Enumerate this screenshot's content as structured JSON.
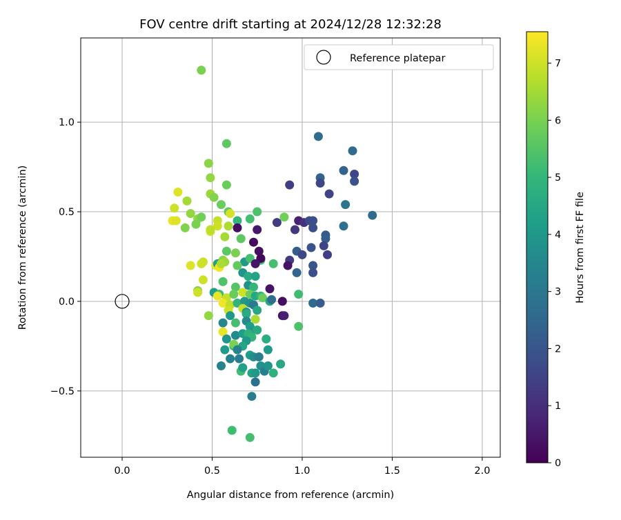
{
  "chart_data": {
    "type": "scatter",
    "title": "FOV centre drift starting at 2024/12/28 12:32:28",
    "xlabel": "Angular distance from reference (arcmin)",
    "ylabel": "Rotation from reference (arcmin)",
    "xlim": [
      -0.23,
      2.1
    ],
    "ylim": [
      -0.87,
      1.47
    ],
    "xticks": [
      0.0,
      0.5,
      1.0,
      1.5,
      2.0
    ],
    "xtick_labels": [
      "0.0",
      "0.5",
      "1.0",
      "1.5",
      "2.0"
    ],
    "yticks": [
      -0.5,
      0.0,
      0.5,
      1.0
    ],
    "ytick_labels": [
      "−0.5",
      "0.0",
      "0.5",
      "1.0"
    ],
    "grid": true,
    "legend": {
      "position": "top-right",
      "entries": [
        "Reference platepar"
      ]
    },
    "reference_point": {
      "x": 0.0,
      "y": 0.0
    },
    "colorbar": {
      "label": "Hours from first FF file",
      "colormap": "viridis",
      "range": [
        0,
        7.55
      ],
      "ticks": [
        0,
        1,
        2,
        3,
        4,
        5,
        6,
        7
      ],
      "tick_labels": [
        "0",
        "1",
        "2",
        "3",
        "4",
        "5",
        "6",
        "7"
      ]
    },
    "points": [
      [
        0.44,
        1.29,
        6.0
      ],
      [
        0.58,
        0.88,
        5.6
      ],
      [
        0.48,
        0.77,
        6.2
      ],
      [
        0.49,
        0.69,
        6.3
      ],
      [
        0.58,
        0.65,
        5.8
      ],
      [
        0.31,
        0.61,
        7.2
      ],
      [
        0.49,
        0.6,
        6.4
      ],
      [
        0.36,
        0.56,
        6.5
      ],
      [
        0.51,
        0.58,
        6.1
      ],
      [
        0.29,
        0.52,
        7.0
      ],
      [
        0.55,
        0.54,
        5.8
      ],
      [
        0.38,
        0.49,
        6.3
      ],
      [
        0.59,
        0.5,
        5.7
      ],
      [
        0.6,
        0.49,
        7.1
      ],
      [
        0.75,
        0.5,
        5.4
      ],
      [
        0.28,
        0.45,
        7.3
      ],
      [
        0.3,
        0.45,
        7.2
      ],
      [
        0.42,
        0.46,
        6.3
      ],
      [
        0.44,
        0.47,
        5.9
      ],
      [
        0.53,
        0.45,
        6.9
      ],
      [
        0.53,
        0.42,
        7.0
      ],
      [
        0.59,
        0.42,
        6.6
      ],
      [
        0.64,
        0.45,
        5.0
      ],
      [
        0.71,
        0.46,
        5.3
      ],
      [
        0.9,
        0.47,
        5.9
      ],
      [
        0.41,
        0.43,
        6.0
      ],
      [
        0.35,
        0.41,
        6.1
      ],
      [
        0.49,
        0.39,
        7.0
      ],
      [
        0.49,
        0.4,
        6.8
      ],
      [
        0.64,
        0.41,
        0.3
      ],
      [
        0.75,
        0.4,
        0.5
      ],
      [
        0.86,
        0.44,
        1.3
      ],
      [
        0.98,
        0.45,
        0.7
      ],
      [
        1.01,
        0.44,
        1.1
      ],
      [
        1.04,
        0.45,
        1.7
      ],
      [
        1.06,
        0.45,
        1.8
      ],
      [
        0.96,
        0.4,
        1.2
      ],
      [
        1.06,
        0.41,
        1.8
      ],
      [
        1.13,
        0.37,
        2.1
      ],
      [
        1.13,
        0.35,
        2.2
      ],
      [
        0.57,
        0.36,
        6.5
      ],
      [
        0.66,
        0.35,
        5.6
      ],
      [
        0.73,
        0.33,
        0.2
      ],
      [
        1.05,
        0.3,
        1.9
      ],
      [
        1.12,
        0.31,
        1.5
      ],
      [
        0.58,
        0.28,
        5.6
      ],
      [
        0.63,
        0.27,
        6.0
      ],
      [
        0.76,
        0.28,
        0.3
      ],
      [
        0.97,
        0.28,
        2.2
      ],
      [
        1.0,
        0.26,
        1.6
      ],
      [
        1.14,
        0.26,
        1.4
      ],
      [
        0.56,
        0.23,
        6.2
      ],
      [
        0.57,
        0.22,
        6.4
      ],
      [
        0.68,
        0.22,
        4.0
      ],
      [
        0.71,
        0.24,
        5.3
      ],
      [
        0.77,
        0.23,
        5.1
      ],
      [
        0.77,
        0.24,
        0.1
      ],
      [
        0.93,
        0.23,
        1.3
      ],
      [
        0.38,
        0.2,
        7.2
      ],
      [
        0.44,
        0.21,
        7.0
      ],
      [
        0.45,
        0.22,
        7.0
      ],
      [
        0.52,
        0.2,
        7.3
      ],
      [
        0.53,
        0.21,
        4.3
      ],
      [
        0.54,
        0.19,
        7.4
      ],
      [
        0.55,
        0.21,
        6.6
      ],
      [
        0.64,
        0.2,
        5.7
      ],
      [
        0.74,
        0.21,
        0.4
      ],
      [
        0.84,
        0.21,
        5.3
      ],
      [
        0.92,
        0.2,
        0.4
      ],
      [
        1.06,
        0.2,
        2.0
      ],
      [
        0.67,
        0.16,
        3.9
      ],
      [
        0.7,
        0.14,
        4.6
      ],
      [
        0.74,
        0.14,
        4.4
      ],
      [
        0.97,
        0.16,
        2.5
      ],
      [
        1.06,
        0.16,
        1.8
      ],
      [
        0.45,
        0.12,
        7.0
      ],
      [
        0.56,
        0.11,
        5.4
      ],
      [
        0.7,
        0.09,
        3.8
      ],
      [
        0.63,
        0.08,
        5.5
      ],
      [
        0.73,
        0.08,
        5.0
      ],
      [
        0.82,
        0.07,
        0.4
      ],
      [
        0.42,
        0.06,
        6.2
      ],
      [
        0.42,
        0.05,
        7.0
      ],
      [
        0.51,
        0.05,
        4.2
      ],
      [
        0.54,
        0.04,
        5.2
      ],
      [
        0.53,
        0.03,
        7.3
      ],
      [
        0.58,
        0.02,
        6.9
      ],
      [
        0.62,
        0.04,
        5.8
      ],
      [
        0.67,
        0.05,
        7.0
      ],
      [
        0.71,
        0.04,
        5.8
      ],
      [
        0.74,
        0.03,
        4.5
      ],
      [
        0.77,
        0.03,
        5.0
      ],
      [
        0.78,
        0.02,
        5.8
      ],
      [
        0.82,
        0.0,
        4.5
      ],
      [
        0.83,
        0.01,
        2.7
      ],
      [
        0.89,
        0.0,
        0.3
      ],
      [
        0.98,
        0.04,
        5.2
      ],
      [
        1.06,
        -0.01,
        2.6
      ],
      [
        1.1,
        -0.01,
        2.2
      ],
      [
        0.56,
        -0.01,
        7.4
      ],
      [
        0.6,
        -0.02,
        6.8
      ],
      [
        0.64,
        -0.01,
        4.9
      ],
      [
        0.68,
        0.0,
        4.0
      ],
      [
        0.71,
        -0.01,
        3.8
      ],
      [
        0.73,
        -0.02,
        3.1
      ],
      [
        0.59,
        -0.05,
        7.0
      ],
      [
        0.67,
        -0.04,
        6.9
      ],
      [
        0.69,
        -0.06,
        3.9
      ],
      [
        0.75,
        -0.05,
        4.5
      ],
      [
        0.48,
        -0.08,
        6.3
      ],
      [
        0.6,
        -0.08,
        4.0
      ],
      [
        0.69,
        -0.07,
        4.6
      ],
      [
        0.74,
        -0.1,
        6.6
      ],
      [
        0.89,
        -0.08,
        0.4
      ],
      [
        0.9,
        -0.08,
        0.7
      ],
      [
        0.56,
        -0.12,
        3.5
      ],
      [
        0.63,
        -0.12,
        5.3
      ],
      [
        0.69,
        -0.11,
        3.6
      ],
      [
        0.71,
        -0.14,
        4.2
      ],
      [
        0.72,
        -0.16,
        4.0
      ],
      [
        0.75,
        -0.16,
        4.6
      ],
      [
        0.98,
        -0.14,
        5.4
      ],
      [
        0.56,
        -0.17,
        7.3
      ],
      [
        0.63,
        -0.19,
        3.6
      ],
      [
        0.67,
        -0.18,
        4.2
      ],
      [
        0.7,
        -0.18,
        4.8
      ],
      [
        0.72,
        -0.2,
        5.0
      ],
      [
        0.58,
        -0.21,
        3.9
      ],
      [
        0.69,
        -0.22,
        4.0
      ],
      [
        0.8,
        -0.21,
        4.7
      ],
      [
        0.62,
        -0.25,
        5.0
      ],
      [
        0.62,
        -0.24,
        6.0
      ],
      [
        0.67,
        -0.25,
        4.4
      ],
      [
        0.57,
        -0.27,
        4.1
      ],
      [
        0.64,
        -0.27,
        3.4
      ],
      [
        0.81,
        -0.27,
        4.1
      ],
      [
        0.6,
        -0.32,
        3.3
      ],
      [
        0.65,
        -0.32,
        3.2
      ],
      [
        0.71,
        -0.3,
        4.2
      ],
      [
        0.73,
        -0.31,
        3.7
      ],
      [
        0.76,
        -0.31,
        3.2
      ],
      [
        0.55,
        -0.36,
        3.4
      ],
      [
        0.66,
        -0.39,
        5.2
      ],
      [
        0.67,
        -0.37,
        4.3
      ],
      [
        0.72,
        -0.4,
        4.4
      ],
      [
        0.74,
        -0.4,
        4.0
      ],
      [
        0.77,
        -0.36,
        3.8
      ],
      [
        0.79,
        -0.39,
        3.2
      ],
      [
        0.81,
        -0.36,
        3.9
      ],
      [
        0.84,
        -0.4,
        4.8
      ],
      [
        0.88,
        -0.35,
        4.5
      ],
      [
        0.74,
        -0.45,
        2.8
      ],
      [
        0.72,
        -0.53,
        3.2
      ],
      [
        0.61,
        -0.72,
        5.2
      ],
      [
        0.71,
        -0.76,
        5.3
      ],
      [
        1.09,
        0.92,
        2.7
      ],
      [
        1.1,
        0.69,
        2.4
      ],
      [
        1.1,
        0.66,
        1.6
      ],
      [
        0.93,
        0.65,
        1.4
      ],
      [
        1.15,
        0.6,
        1.5
      ],
      [
        1.23,
        0.73,
        2.4
      ],
      [
        1.28,
        0.84,
        2.6
      ],
      [
        1.29,
        0.71,
        1.6
      ],
      [
        1.29,
        0.67,
        1.9
      ],
      [
        1.24,
        0.54,
        2.9
      ],
      [
        1.23,
        0.42,
        2.8
      ],
      [
        1.39,
        0.48,
        2.6
      ]
    ]
  }
}
